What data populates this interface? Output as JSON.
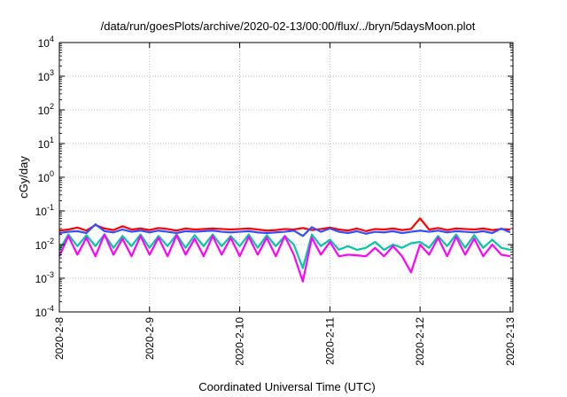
{
  "chart_data": {
    "type": "line",
    "title": "/data/run/goesPlots/archive/2020-02-13/00:00/flux/../bryn/5daysMoon.plot",
    "xlabel": "Coordinated Universal Time (UTC)",
    "ylabel": "cGy/day",
    "yscale": "log",
    "ylim": [
      0.0001,
      10000
    ],
    "xlim": [
      0,
      5.03
    ],
    "grid": true,
    "legend": "none",
    "x_ticks": [
      {
        "value": 0,
        "label": "2020-2-8"
      },
      {
        "value": 1,
        "label": "2020-2-9"
      },
      {
        "value": 2,
        "label": "2020-2-10"
      },
      {
        "value": 3,
        "label": "2020-2-11"
      },
      {
        "value": 4,
        "label": "2020-2-12"
      },
      {
        "value": 5,
        "label": "2020-2-13"
      }
    ],
    "y_ticks": [
      {
        "value": 0.0001,
        "base": "10",
        "exp": "-4"
      },
      {
        "value": 0.001,
        "base": "10",
        "exp": "-3"
      },
      {
        "value": 0.01,
        "base": "10",
        "exp": "-2"
      },
      {
        "value": 0.1,
        "base": "10",
        "exp": "-1"
      },
      {
        "value": 1,
        "base": "10",
        "exp": "0"
      },
      {
        "value": 10,
        "base": "10",
        "exp": "1"
      },
      {
        "value": 100,
        "base": "10",
        "exp": "2"
      },
      {
        "value": 1000,
        "base": "10",
        "exp": "3"
      },
      {
        "value": 10000,
        "base": "10",
        "exp": "4"
      }
    ],
    "x": [
      0.0,
      0.1,
      0.2,
      0.3,
      0.4,
      0.5,
      0.6,
      0.7,
      0.8,
      0.9,
      1.0,
      1.1,
      1.2,
      1.3,
      1.4,
      1.5,
      1.6,
      1.7,
      1.8,
      1.9,
      2.0,
      2.1,
      2.2,
      2.3,
      2.4,
      2.5,
      2.6,
      2.7,
      2.8,
      2.9,
      3.0,
      3.1,
      3.2,
      3.3,
      3.4,
      3.5,
      3.6,
      3.7,
      3.8,
      3.9,
      4.0,
      4.1,
      4.2,
      4.3,
      4.4,
      4.5,
      4.6,
      4.7,
      4.8,
      4.9,
      5.0
    ],
    "series": [
      {
        "color": "#ff0000",
        "values": [
          0.026,
          0.028,
          0.032,
          0.026,
          0.038,
          0.03,
          0.027,
          0.035,
          0.028,
          0.03,
          0.027,
          0.031,
          0.029,
          0.026,
          0.03,
          0.028,
          0.029,
          0.03,
          0.029,
          0.028,
          0.029,
          0.03,
          0.028,
          0.026,
          0.027,
          0.029,
          0.028,
          0.031,
          0.027,
          0.029,
          0.032,
          0.028,
          0.026,
          0.03,
          0.025,
          0.029,
          0.028,
          0.03,
          0.027,
          0.029,
          0.06,
          0.028,
          0.031,
          0.027,
          0.03,
          0.029,
          0.028,
          0.03,
          0.027,
          0.029,
          0.028
        ]
      },
      {
        "color": "#3050ff",
        "values": [
          0.022,
          0.024,
          0.025,
          0.022,
          0.04,
          0.025,
          0.023,
          0.028,
          0.024,
          0.026,
          0.023,
          0.026,
          0.024,
          0.022,
          0.025,
          0.024,
          0.025,
          0.026,
          0.024,
          0.023,
          0.024,
          0.025,
          0.023,
          0.022,
          0.023,
          0.024,
          0.026,
          0.018,
          0.033,
          0.024,
          0.03,
          0.024,
          0.022,
          0.025,
          0.021,
          0.024,
          0.023,
          0.025,
          0.022,
          0.024,
          0.026,
          0.024,
          0.026,
          0.023,
          0.025,
          0.024,
          0.023,
          0.025,
          0.022,
          0.03,
          0.023
        ]
      },
      {
        "color": "#00c8a0",
        "values": [
          0.007,
          0.02,
          0.009,
          0.019,
          0.009,
          0.02,
          0.008,
          0.018,
          0.009,
          0.02,
          0.008,
          0.018,
          0.009,
          0.02,
          0.008,
          0.019,
          0.009,
          0.02,
          0.009,
          0.018,
          0.009,
          0.02,
          0.008,
          0.019,
          0.009,
          0.018,
          0.01,
          0.002,
          0.02,
          0.009,
          0.014,
          0.007,
          0.009,
          0.007,
          0.008,
          0.012,
          0.007,
          0.01,
          0.008,
          0.011,
          0.012,
          0.008,
          0.018,
          0.009,
          0.02,
          0.008,
          0.019,
          0.008,
          0.014,
          0.008,
          0.007
        ]
      },
      {
        "color": "#ff00ff",
        "values": [
          0.0045,
          0.018,
          0.005,
          0.016,
          0.0045,
          0.02,
          0.005,
          0.015,
          0.0045,
          0.018,
          0.005,
          0.016,
          0.0045,
          0.019,
          0.005,
          0.015,
          0.0045,
          0.018,
          0.005,
          0.016,
          0.0045,
          0.017,
          0.005,
          0.016,
          0.0045,
          0.018,
          0.005,
          0.0008,
          0.016,
          0.005,
          0.012,
          0.0045,
          0.005,
          0.0048,
          0.0045,
          0.008,
          0.0045,
          0.009,
          0.0045,
          0.0015,
          0.01,
          0.005,
          0.016,
          0.0045,
          0.017,
          0.005,
          0.015,
          0.0045,
          0.01,
          0.005,
          0.0045
        ]
      }
    ]
  }
}
